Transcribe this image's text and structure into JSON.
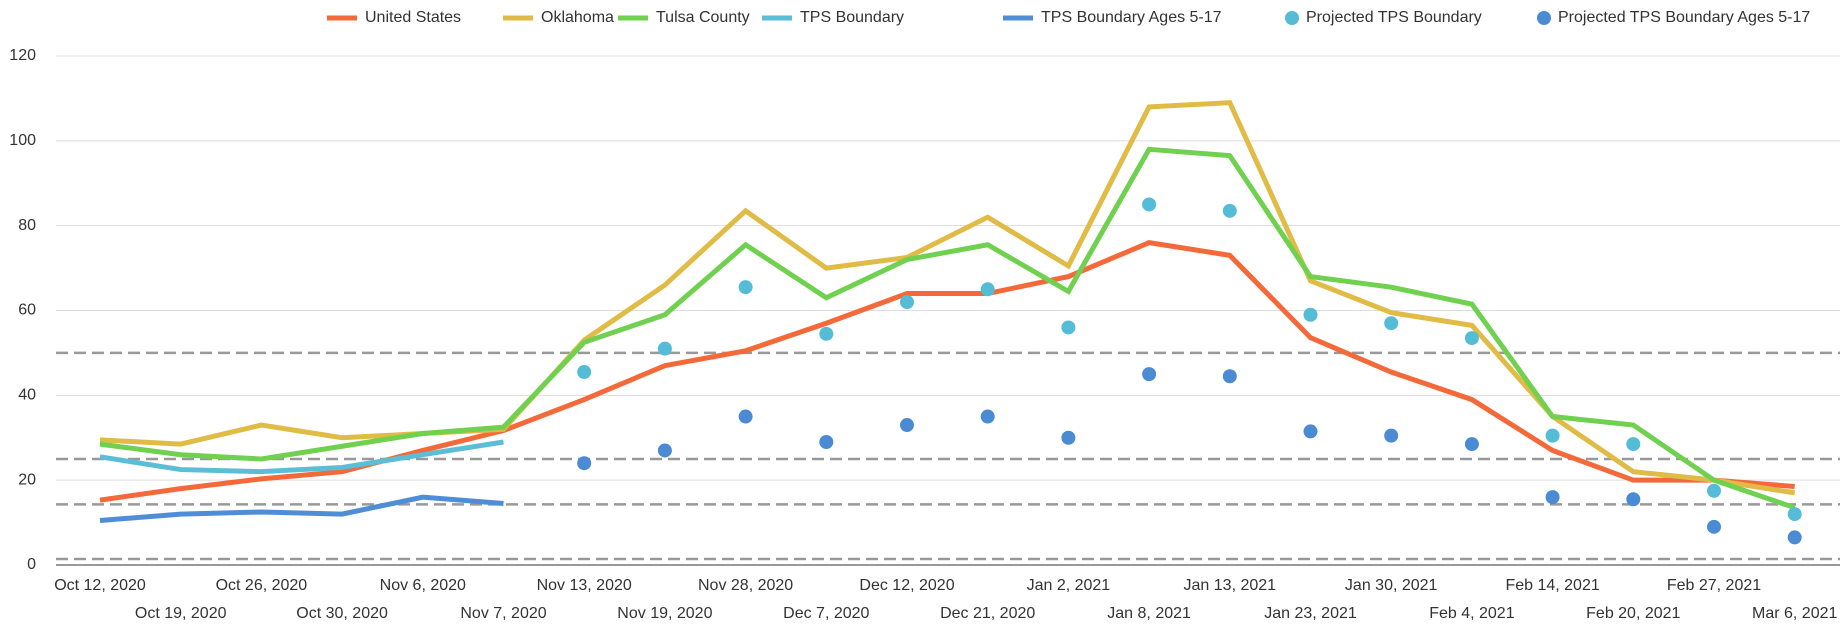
{
  "chart_data": {
    "type": "line",
    "categories": [
      "Oct 12, 2020",
      "Oct 19, 2020",
      "Oct 26, 2020",
      "Oct 30, 2020",
      "Nov 6, 2020",
      "Nov 7, 2020",
      "Nov 13, 2020",
      "Nov 19, 2020",
      "Nov 28, 2020",
      "Dec 7, 2020",
      "Dec 12, 2020",
      "Dec 21, 2020",
      "Jan 2, 2021",
      "Jan 8, 2021",
      "Jan 13, 2021",
      "Jan 23, 2021",
      "Jan 30, 2021",
      "Feb 4, 2021",
      "Feb 14, 2021",
      "Feb 20, 2021",
      "Feb 27, 2021",
      "Mar 6, 2021"
    ],
    "series": [
      {
        "name": "United States",
        "color": "#f4693a",
        "type": "line",
        "values": [
          15.3,
          18,
          20.3,
          22,
          27,
          31.7,
          39,
          47,
          50.5,
          57,
          64,
          64,
          68,
          76,
          73,
          53.6,
          45.5,
          39,
          27,
          20,
          20,
          18.5
        ]
      },
      {
        "name": "Oklahoma",
        "color": "#e0bb45",
        "type": "line",
        "values": [
          29.5,
          28.5,
          33,
          30,
          31,
          32,
          53,
          66,
          83.5,
          70,
          72.5,
          82,
          70.5,
          108,
          109,
          67,
          59.5,
          56.5,
          35,
          22,
          20,
          17
        ]
      },
      {
        "name": "Tulsa County",
        "color": "#6fd14f",
        "type": "line",
        "values": [
          28.5,
          26,
          25,
          28,
          31,
          32.5,
          52.5,
          59,
          75.5,
          63,
          72,
          75.5,
          64.5,
          98,
          96.5,
          68,
          65.5,
          61.5,
          35,
          33,
          20,
          13.5
        ]
      },
      {
        "name": "TPS Boundary",
        "color": "#5bbdd6",
        "type": "line",
        "values": [
          25.5,
          22.5,
          22,
          23,
          26,
          29,
          null,
          null,
          null,
          null,
          null,
          null,
          null,
          null,
          null,
          null,
          null,
          null,
          null,
          null,
          null,
          null
        ]
      },
      {
        "name": "TPS Boundary Ages 5-17",
        "color": "#4f8ed6",
        "type": "line",
        "values": [
          10.5,
          12,
          12.5,
          12,
          16,
          14.5,
          null,
          null,
          null,
          null,
          null,
          null,
          null,
          null,
          null,
          null,
          null,
          null,
          null,
          null,
          null,
          null
        ]
      },
      {
        "name": "Projected TPS Boundary",
        "color": "#55bcd8",
        "type": "scatter",
        "values": [
          null,
          null,
          null,
          null,
          null,
          null,
          45.5,
          51,
          65.5,
          54.5,
          62,
          65,
          56,
          85,
          83.5,
          59,
          57,
          53.5,
          30.5,
          28.5,
          17.5,
          12
        ]
      },
      {
        "name": "Projected TPS Boundary Ages 5-17",
        "color": "#4a8bd4",
        "type": "scatter",
        "values": [
          null,
          null,
          null,
          null,
          null,
          null,
          24,
          27,
          35,
          29,
          33,
          35,
          30,
          45,
          44.5,
          31.5,
          30.5,
          28.5,
          16,
          15.5,
          9,
          6.5
        ]
      }
    ],
    "reference_lines": [
      50,
      25,
      14.3,
      1.4
    ],
    "ylim": [
      0,
      120
    ],
    "yticks": [
      0,
      20,
      40,
      60,
      80,
      100,
      120
    ],
    "grid": true,
    "legend": "top"
  }
}
